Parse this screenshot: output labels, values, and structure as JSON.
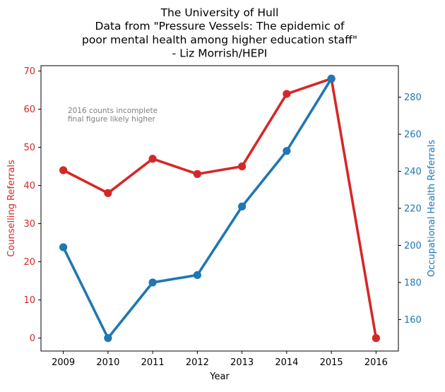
{
  "chart_data": {
    "type": "line",
    "title_lines": [
      "The University of Hull",
      "Data from \"Pressure Vessels: The epidemic of",
      "poor mental health among higher education staff\"",
      "- Liz Morrish/HEPI"
    ],
    "xlabel": "Year",
    "x": [
      2009,
      2010,
      2011,
      2012,
      2013,
      2014,
      2015,
      2016
    ],
    "xlim": [
      2008.5,
      2016.5
    ],
    "y_left": {
      "label": "Counselling Referrals",
      "color": "#d62728",
      "lim": [
        -3.4,
        71.4
      ],
      "ticks": [
        0,
        10,
        20,
        30,
        40,
        50,
        60,
        70
      ]
    },
    "y_right": {
      "label": "Occupational Health Referrals",
      "color": "#1f77b4",
      "lim": [
        143,
        297
      ],
      "ticks": [
        160,
        180,
        200,
        220,
        240,
        260,
        280
      ]
    },
    "series": [
      {
        "axis": "left",
        "color": "#d62728",
        "values": [
          44,
          38,
          47,
          43,
          45,
          64,
          68,
          0
        ]
      },
      {
        "axis": "right",
        "color": "#1f77b4",
        "values": [
          199,
          150,
          180,
          184,
          221,
          251,
          290,
          null
        ]
      }
    ],
    "annotation": {
      "lines": [
        "2016 counts incomplete",
        "final figure likely higher"
      ],
      "color": "#808080",
      "anchor_x": 2009.1,
      "anchor_y": 59
    },
    "grid": false,
    "legend": null
  }
}
